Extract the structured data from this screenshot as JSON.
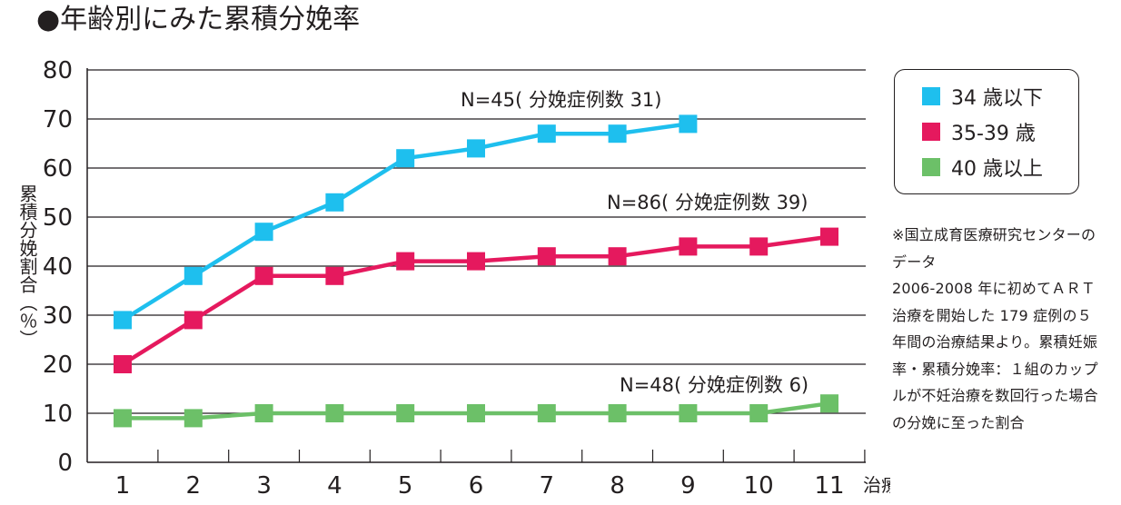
{
  "chart_data": {
    "type": "line",
    "title": "●年齢別にみた累積分娩率",
    "xlabel": "治療回数（回数）",
    "ylabel": "累積分娩割合（％）",
    "x": [
      1,
      2,
      3,
      4,
      5,
      6,
      7,
      8,
      9,
      10,
      11
    ],
    "xlim": [
      0,
      11.5
    ],
    "ylim": [
      0,
      80
    ],
    "yticks": [
      0,
      10,
      20,
      30,
      40,
      50,
      60,
      70,
      80
    ],
    "grid": "horizontal",
    "legend_position": "top-right",
    "series": [
      {
        "name": "34 歳以下",
        "color": "#1ebfee",
        "x": [
          1,
          2,
          3,
          4,
          5,
          6,
          7,
          8,
          9
        ],
        "values": [
          29,
          38,
          47,
          53,
          62,
          64,
          67,
          67,
          69
        ],
        "annotation": "N=45( 分娩症例数 31)"
      },
      {
        "name": "35-39 歳",
        "color": "#e5195e",
        "x": [
          1,
          2,
          3,
          4,
          5,
          6,
          7,
          8,
          9,
          10,
          11
        ],
        "values": [
          20,
          29,
          38,
          38,
          41,
          41,
          42,
          42,
          44,
          44,
          46
        ],
        "annotation": "N=86( 分娩症例数 39)"
      },
      {
        "name": "40 歳以上",
        "color": "#6cc068",
        "x": [
          1,
          2,
          3,
          4,
          5,
          6,
          7,
          8,
          9,
          10,
          11
        ],
        "values": [
          9,
          9,
          10,
          10,
          10,
          10,
          10,
          10,
          10,
          10,
          12
        ],
        "annotation": "N=48( 分娩症例数 6)"
      }
    ]
  },
  "footnote": [
    "※国立成育医療研究センターの",
    "データ",
    "2006-2008 年に初めてＡＲＴ",
    "治療を開始した 179 症例の５",
    "年間の治療結果より。累積妊娠",
    "率・累積分娩率：１組のカップ",
    "ルが不妊治療を数回行った場合",
    "の分娩に至った割合"
  ]
}
